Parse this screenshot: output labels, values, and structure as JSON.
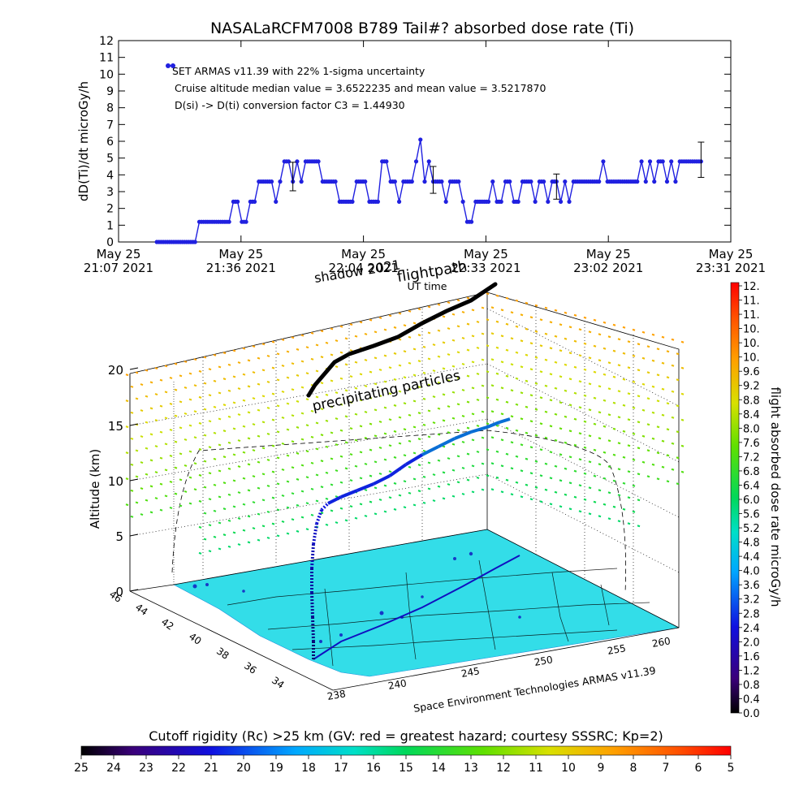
{
  "chart_data": [
    {
      "type": "line",
      "title": "NASALaRCFM7008  B789 Tail#? absorbed dose rate (Ti)",
      "ylabel": "dD(Ti)/dt microGy/h",
      "xlabel": "UT time",
      "ylim": [
        0,
        12
      ],
      "yticks": [
        "0",
        "1",
        "2",
        "3",
        "4",
        "5",
        "6",
        "7",
        "8",
        "9",
        "10",
        "11",
        "12"
      ],
      "xlim_minutes": [
        0,
        144
      ],
      "xticks": [
        {
          "date": "May 25",
          "time": "21:07 2021"
        },
        {
          "date": "May 25",
          "time": "21:36 2021"
        },
        {
          "date": "May 25",
          "time": "22:04 2021"
        },
        {
          "date": "May 25",
          "time": "22:33 2021"
        },
        {
          "date": "May 25",
          "time": "23:02 2021"
        },
        {
          "date": "May 25",
          "time": "23:31 2021"
        }
      ],
      "annotations": [
        "SET ARMAS v11.39 with 22% 1-sigma uncertainty",
        "Cruise altitude median value = 3.6522235 and mean value = 3.5217870",
        "D(si) -> D(ti) conversion factor C3 = 1.44930"
      ],
      "series": [
        {
          "color": "#2020e0",
          "points": [
            [
              9,
              0
            ],
            [
              18,
              0
            ],
            [
              19,
              1.2
            ],
            [
              26,
              1.2
            ],
            [
              27,
              2.4
            ],
            [
              28,
              2.4
            ],
            [
              29,
              1.2
            ],
            [
              30,
              1.2
            ],
            [
              31,
              2.4
            ],
            [
              32,
              2.4
            ],
            [
              33,
              3.6
            ],
            [
              36,
              3.6
            ],
            [
              37,
              2.4
            ],
            [
              38,
              3.6
            ],
            [
              39,
              4.8
            ],
            [
              40,
              4.8
            ],
            [
              41,
              3.6
            ],
            [
              42,
              4.8
            ],
            [
              43,
              3.6
            ],
            [
              44,
              4.8
            ],
            [
              47,
              4.8
            ],
            [
              48,
              3.6
            ],
            [
              51,
              3.6
            ],
            [
              52,
              2.4
            ],
            [
              55,
              2.4
            ],
            [
              56,
              3.6
            ],
            [
              58,
              3.6
            ],
            [
              59,
              2.4
            ],
            [
              61,
              2.4
            ],
            [
              62,
              4.8
            ],
            [
              63,
              4.8
            ],
            [
              64,
              3.6
            ],
            [
              65,
              3.6
            ],
            [
              66,
              2.4
            ],
            [
              67,
              3.6
            ],
            [
              69,
              3.6
            ],
            [
              70,
              4.8
            ],
            [
              71,
              6.1
            ],
            [
              72,
              3.6
            ],
            [
              73,
              4.8
            ],
            [
              74,
              3.6
            ],
            [
              76,
              3.6
            ],
            [
              77,
              2.4
            ],
            [
              78,
              3.6
            ],
            [
              80,
              3.6
            ],
            [
              81,
              2.4
            ],
            [
              82,
              1.2
            ],
            [
              83,
              1.2
            ],
            [
              84,
              2.4
            ],
            [
              87,
              2.4
            ],
            [
              88,
              3.6
            ],
            [
              89,
              2.4
            ],
            [
              90,
              2.4
            ],
            [
              91,
              3.6
            ],
            [
              92,
              3.6
            ],
            [
              93,
              2.4
            ],
            [
              94,
              2.4
            ],
            [
              95,
              3.6
            ],
            [
              97,
              3.6
            ],
            [
              98,
              2.4
            ],
            [
              99,
              3.6
            ],
            [
              100,
              3.6
            ],
            [
              101,
              2.4
            ],
            [
              102,
              3.6
            ],
            [
              103,
              3.6
            ],
            [
              104,
              2.4
            ],
            [
              105,
              3.6
            ],
            [
              106,
              2.4
            ],
            [
              107,
              3.6
            ],
            [
              113,
              3.6
            ],
            [
              114,
              4.8
            ],
            [
              115,
              3.6
            ],
            [
              122,
              3.6
            ],
            [
              123,
              4.8
            ],
            [
              124,
              3.6
            ],
            [
              125,
              4.8
            ],
            [
              126,
              3.6
            ],
            [
              127,
              4.8
            ],
            [
              128,
              4.8
            ],
            [
              129,
              3.6
            ],
            [
              130,
              4.8
            ],
            [
              131,
              3.6
            ],
            [
              132,
              4.8
            ],
            [
              137,
              4.8
            ]
          ],
          "error_bars": [
            {
              "x": 41,
              "y": 3.9,
              "err": 0.85
            },
            {
              "x": 74,
              "y": 3.7,
              "err": 0.8
            },
            {
              "x": 103,
              "y": 3.3,
              "err": 0.75
            },
            {
              "x": 137,
              "y": 4.9,
              "err": 1.05
            }
          ]
        }
      ]
    },
    {
      "type": "scatter",
      "title": "",
      "zlabel": "Altitude (km)",
      "zticks": [
        "0",
        "5",
        "10",
        "15",
        "20"
      ],
      "xlabel": "Space Environment Technologies ARMAS v11.39",
      "xticks": [
        "238",
        "240",
        "245",
        "250",
        "255",
        "260"
      ],
      "yticks": [
        "46",
        "44",
        "42",
        "40",
        "38",
        "36",
        "34"
      ],
      "annotations": [
        "flightpath",
        "shadow 2021",
        "precipitating particles"
      ],
      "colorbar": {
        "label": "flight absorbed dose rate microGy/h",
        "ticks": [
          "12.",
          "11.",
          "11.",
          "10.",
          "10.",
          "10.",
          "9.6",
          "9.2",
          "8.8",
          "8.4",
          "8.0",
          "7.6",
          "7.2",
          "6.8",
          "6.4",
          "6.0",
          "5.6",
          "5.2",
          "4.8",
          "4.4",
          "4.0",
          "3.6",
          "3.2",
          "2.8",
          "2.4",
          "2.0",
          "1.6",
          "1.2",
          "0.8",
          "0.4",
          "0.0"
        ]
      }
    },
    {
      "type": "colorbar",
      "title": "Cutoff rigidity (Rc) >25 km (GV: red = greatest hazard; courtesy SSSRC; Kp=2)",
      "ticks": [
        "25",
        "24",
        "23",
        "22",
        "21",
        "20",
        "19",
        "18",
        "17",
        "16",
        "15",
        "14",
        "13",
        "12",
        "11",
        "10",
        "9",
        "8",
        "7",
        "6",
        "5"
      ]
    }
  ],
  "colors": {
    "data_blue": "#2020e0",
    "ground": "#33dde8",
    "flightpath": "#000000"
  }
}
